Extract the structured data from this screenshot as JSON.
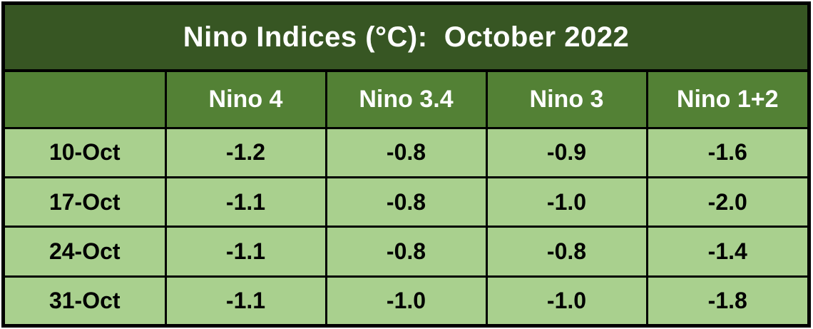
{
  "title": "Nino Indices (°C):  October 2022",
  "table": {
    "corner_label": "",
    "columns": [
      "Nino 4",
      "Nino 3.4",
      "Nino 3",
      "Nino 1+2"
    ],
    "rows": [
      {
        "label": "10-Oct",
        "values": [
          "-1.2",
          "-0.8",
          "-0.9",
          "-1.6"
        ]
      },
      {
        "label": "17-Oct",
        "values": [
          "-1.1",
          "-0.8",
          "-1.0",
          "-2.0"
        ]
      },
      {
        "label": "24-Oct",
        "values": [
          "-1.1",
          "-0.8",
          "-0.8",
          "-1.4"
        ]
      },
      {
        "label": "31-Oct",
        "values": [
          "-1.1",
          "-1.0",
          "-1.0",
          "-1.8"
        ]
      }
    ]
  },
  "colors": {
    "title_bg": "#375623",
    "header_bg": "#538135",
    "row_bg": "#A9D08E",
    "border": "#000000",
    "title_text": "#FFFFFF",
    "header_text": "#FFFFFF",
    "cell_text": "#000000"
  },
  "chart_data": {
    "type": "table",
    "title": "Nino Indices (°C): October 2022",
    "columns": [
      "",
      "Nino 4",
      "Nino 3.4",
      "Nino 3",
      "Nino 1+2"
    ],
    "rows": [
      [
        "10-Oct",
        -1.2,
        -0.8,
        -0.9,
        -1.6
      ],
      [
        "17-Oct",
        -1.1,
        -0.8,
        -1.0,
        -2.0
      ],
      [
        "24-Oct",
        -1.1,
        -0.8,
        -0.8,
        -1.4
      ],
      [
        "31-Oct",
        -1.1,
        -1.0,
        -1.0,
        -1.8
      ]
    ]
  }
}
